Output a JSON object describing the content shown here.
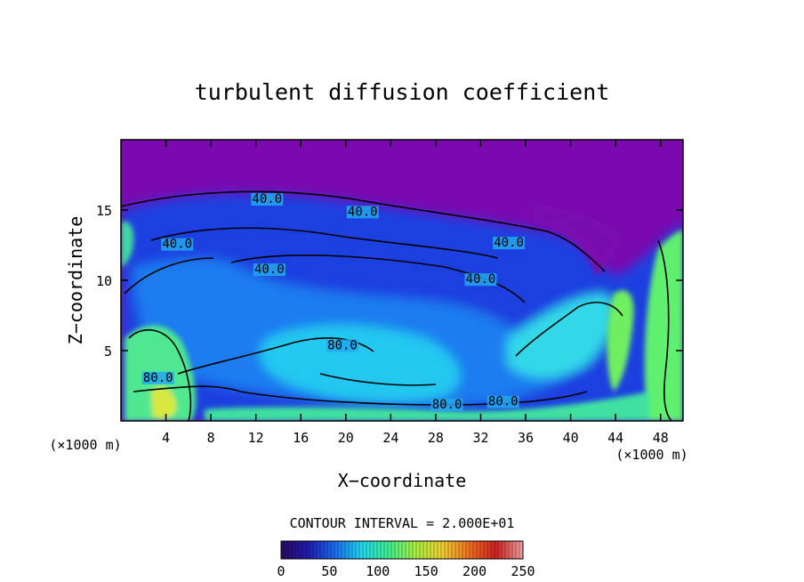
{
  "chart_data": {
    "type": "heatmap",
    "title": "turbulent diffusion coefficient",
    "xlabel": "X−coordinate",
    "ylabel": "Z−coordinate",
    "x_unit_left": "(×1000 m)",
    "x_unit_right": "(×1000 m)",
    "xlim": [
      0,
      50
    ],
    "ylim": [
      0,
      20
    ],
    "x_ticks": [
      4,
      8,
      12,
      16,
      20,
      24,
      28,
      32,
      36,
      40,
      44,
      48
    ],
    "y_ticks": [
      5,
      10,
      15
    ],
    "contour_interval_text": "CONTOUR INTERVAL = 2.000E+01",
    "colorbar": {
      "range": [
        0,
        250
      ],
      "ticks": [
        0,
        50,
        100,
        150,
        200,
        250
      ],
      "colors": [
        "#2a0a5e",
        "#1f1ab0",
        "#1a6cf0",
        "#20d8f0",
        "#40f090",
        "#a8f040",
        "#f0d030",
        "#f07020",
        "#d02020",
        "#f0a0a0"
      ]
    },
    "background_color": "#7a0ab0",
    "contour_labels": [
      {
        "text": "40.0",
        "x": 13.0,
        "z": 15.5
      },
      {
        "text": "40.0",
        "x": 21.5,
        "z": 14.6
      },
      {
        "text": "40.0",
        "x": 5.0,
        "z": 12.3
      },
      {
        "text": "40.0",
        "x": 13.2,
        "z": 10.5
      },
      {
        "text": "40.0",
        "x": 34.5,
        "z": 12.4
      },
      {
        "text": "40.0",
        "x": 32.0,
        "z": 9.8
      },
      {
        "text": "80.0",
        "x": 19.7,
        "z": 5.1
      },
      {
        "text": "80.0",
        "x": 3.3,
        "z": 2.8
      },
      {
        "text": "80.0",
        "x": 29.0,
        "z": 0.9
      },
      {
        "text": "80.0",
        "x": 34.0,
        "z": 1.1
      }
    ]
  }
}
